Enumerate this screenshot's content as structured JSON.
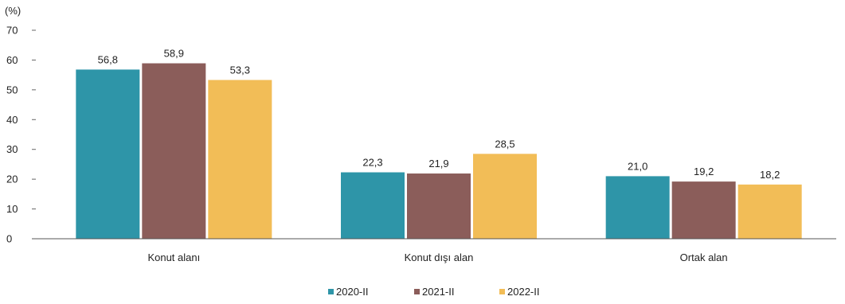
{
  "chart_data": {
    "type": "bar",
    "unit_label": "(%)",
    "categories": [
      "Konut alanı",
      "Konut dışı alan",
      "Ortak alan"
    ],
    "series": [
      {
        "name": "2020-II",
        "values": [
          56.8,
          22.3,
          21.0
        ],
        "labels": [
          "56,8",
          "22,3",
          "21,0"
        ],
        "color": "#2e95a8"
      },
      {
        "name": "2021-II",
        "values": [
          58.9,
          21.9,
          19.2
        ],
        "labels": [
          "58,9",
          "21,9",
          "19,2"
        ],
        "color": "#8b5d5a"
      },
      {
        "name": "2022-II",
        "values": [
          53.3,
          28.5,
          18.2
        ],
        "labels": [
          "53,3",
          "28,5",
          "18,2"
        ],
        "color": "#f2bd57"
      }
    ],
    "yticks": [
      "0",
      "10",
      "20",
      "30",
      "40",
      "50",
      "60",
      "70"
    ],
    "ylim": [
      0,
      70
    ],
    "grid": false,
    "legend_position": "bottom"
  }
}
